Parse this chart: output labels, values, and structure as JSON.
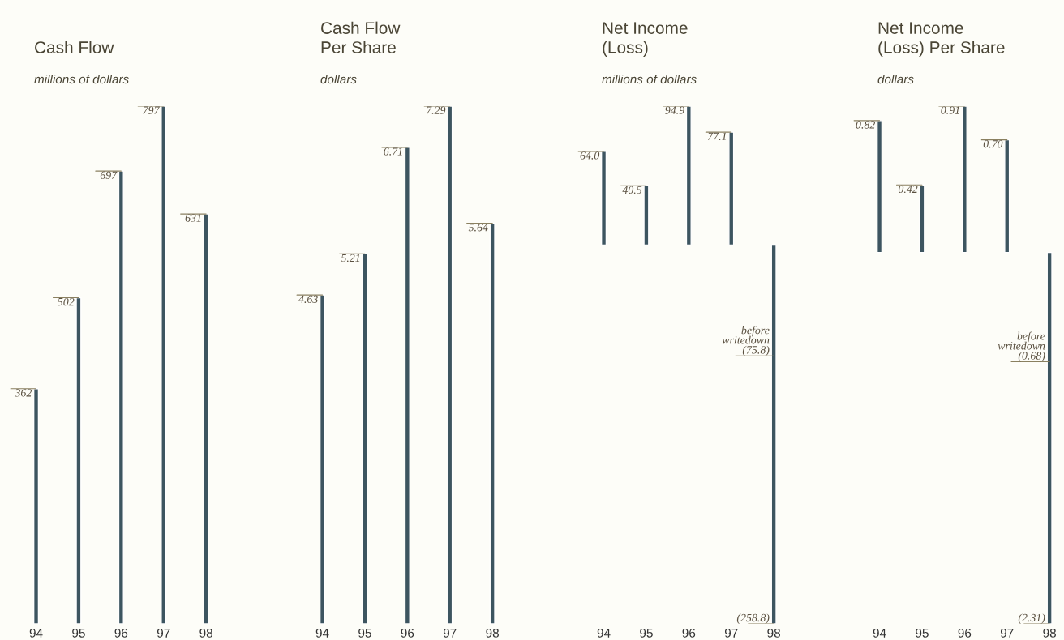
{
  "chart_data": [
    {
      "type": "bar",
      "title": "Cash Flow",
      "subtitle": "millions of dollars",
      "categories": [
        "94",
        "95",
        "96",
        "97",
        "98"
      ],
      "color": "#3d5560",
      "values": [
        362,
        502,
        697,
        797,
        631
      ],
      "data_labels": true,
      "tick_labels": "x"
    },
    {
      "type": "bar",
      "title": "Cash Flow\nPer Share",
      "subtitle": "dollars",
      "categories": [
        "94",
        "95",
        "96",
        "97",
        "98"
      ],
      "color": "#3d5560",
      "values": [
        4.63,
        5.21,
        6.71,
        7.29,
        5.64
      ],
      "data_labels": true,
      "tick_labels": "x"
    },
    {
      "type": "bar",
      "title": "Net Income\n(Loss)",
      "subtitle": "millions of dollars",
      "categories": [
        "94",
        "95",
        "96",
        "97",
        "98"
      ],
      "color": "#3d5560",
      "values": [
        64.0,
        40.5,
        94.9,
        77.1,
        -258.8
      ],
      "value_labels": [
        "64.0",
        "40.5",
        "94.9",
        "77.1",
        "(258.8)"
      ],
      "tick_labels": "x",
      "annotations": [
        {
          "text": "before\nwritedown\n(75.8)",
          "x": "98",
          "y": -75.8
        }
      ]
    },
    {
      "type": "bar",
      "title": "Net Income\n(Loss) Per Share",
      "subtitle": "dollars",
      "categories": [
        "94",
        "95",
        "96",
        "97",
        "98"
      ],
      "color": "#3d5560",
      "values": [
        0.82,
        0.42,
        0.91,
        0.7,
        -2.31
      ],
      "value_labels": [
        "0.82",
        "0.42",
        "0.91",
        "0.70",
        "(2.31)"
      ],
      "tick_labels": "x",
      "annotations": [
        {
          "text": "before\nwritedown\n(0.68)",
          "x": "98",
          "y": -0.68
        }
      ]
    }
  ]
}
